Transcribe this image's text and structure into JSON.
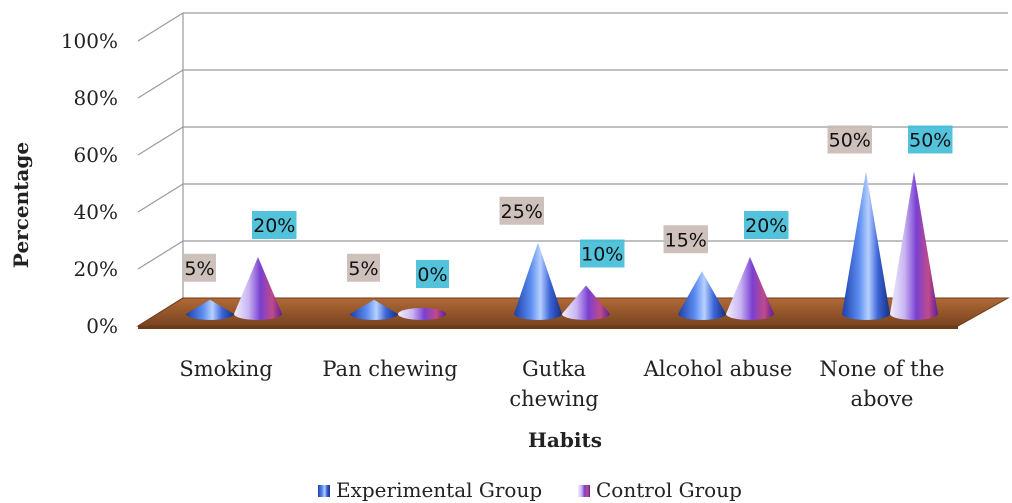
{
  "chart_data": {
    "type": "bar",
    "title": "",
    "xlabel": "Habits",
    "ylabel": "Percentage",
    "categories": [
      [
        "Smoking"
      ],
      [
        "Pan chewing"
      ],
      [
        "Gutka",
        "chewing"
      ],
      [
        "Alcohol abuse"
      ],
      [
        "None of the",
        "above"
      ]
    ],
    "series": [
      {
        "name": "Experimental Group",
        "values": [
          5,
          5,
          25,
          15,
          50
        ],
        "labels": [
          "5%",
          "5%",
          "25%",
          "15%",
          "50%"
        ]
      },
      {
        "name": "Control Group",
        "values": [
          20,
          0,
          10,
          20,
          50
        ],
        "labels": [
          "20%",
          "0%",
          "10%",
          "20%",
          "50%"
        ]
      }
    ],
    "ylim": [
      0,
      100
    ],
    "yticks": [
      "0%",
      "20%",
      "40%",
      "60%",
      "80%",
      "100%"
    ],
    "grid": true,
    "legend_position": "bottom",
    "colors": {
      "floor": "#9a5a2e",
      "floor_edge": "#6b3a18",
      "experimental": "#3f6fe0",
      "control": "#9a4fe0",
      "experimental_label_bg": "#c9b9b2",
      "control_label_bg": "#40bcd8",
      "grid": "#9a9a9a"
    }
  }
}
